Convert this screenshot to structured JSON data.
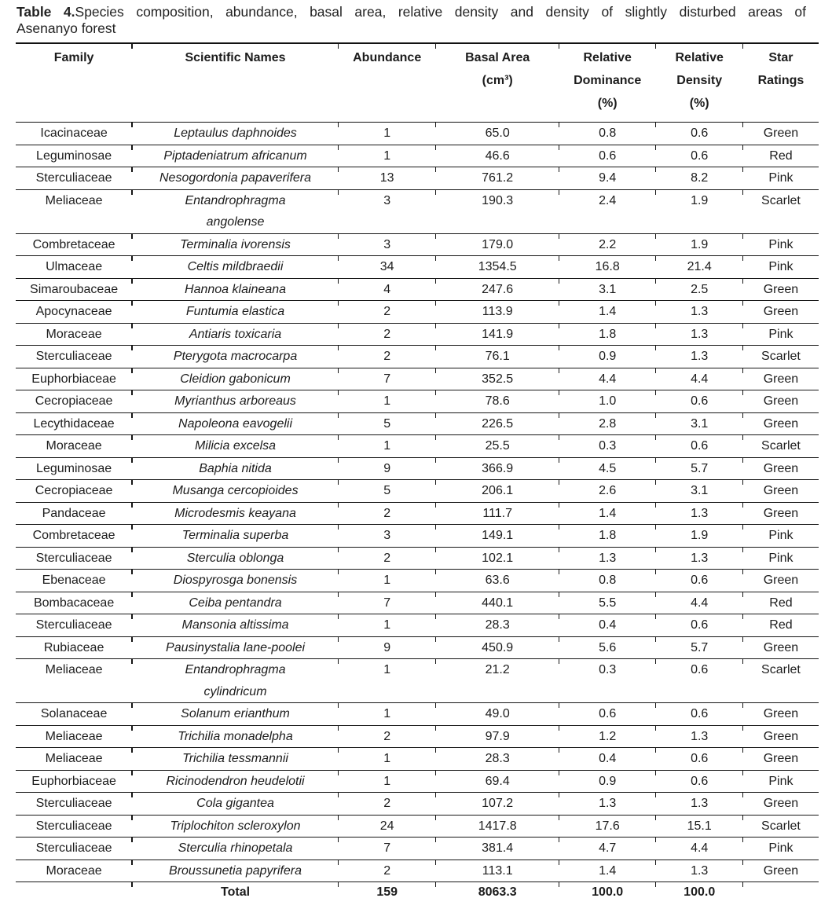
{
  "title": {
    "label": "Table 4.",
    "line1": "Species composition, abundance, basal area, relative density and density of slightly disturbed areas of",
    "line2": "Asenanyo forest"
  },
  "table": {
    "columns": [
      {
        "lines": [
          "Family"
        ]
      },
      {
        "lines": [
          "Scientific Names"
        ]
      },
      {
        "lines": [
          "Abundance"
        ]
      },
      {
        "lines": [
          "Basal Area",
          "(cm³)"
        ]
      },
      {
        "lines": [
          "Relative",
          "Dominance",
          "(%)"
        ]
      },
      {
        "lines": [
          "Relative",
          "Density",
          "(%)"
        ]
      },
      {
        "lines": [
          "Star",
          "Ratings"
        ]
      }
    ],
    "rows": [
      {
        "family": "Icacinaceae",
        "species": "Leptaulus daphnoides",
        "abundance": "1",
        "basal_area": "65.0",
        "relative_dominance": "0.8",
        "relative_density": "0.6",
        "star_rating": "Green"
      },
      {
        "family": "Leguminosae",
        "species": "Piptadeniatrum africanum",
        "abundance": "1",
        "basal_area": "46.6",
        "relative_dominance": "0.6",
        "relative_density": "0.6",
        "star_rating": "Red"
      },
      {
        "family": "Sterculiaceae",
        "species": "Nesogordonia papaverifera",
        "abundance": "13",
        "basal_area": "761.2",
        "relative_dominance": "9.4",
        "relative_density": "8.2",
        "star_rating": "Pink"
      },
      {
        "family": "Meliaceae",
        "species": "Entandrophragma\nangolense",
        "abundance": "3",
        "basal_area": "190.3",
        "relative_dominance": "2.4",
        "relative_density": "1.9",
        "star_rating": "Scarlet"
      },
      {
        "family": "Combretaceae",
        "species": "Terminalia ivorensis",
        "abundance": "3",
        "basal_area": "179.0",
        "relative_dominance": "2.2",
        "relative_density": "1.9",
        "star_rating": "Pink"
      },
      {
        "family": "Ulmaceae",
        "species": "Celtis mildbraedii",
        "abundance": "34",
        "basal_area": "1354.5",
        "relative_dominance": "16.8",
        "relative_density": "21.4",
        "star_rating": "Pink"
      },
      {
        "family": "Simaroubaceae",
        "species": "Hannoa klaineana",
        "abundance": "4",
        "basal_area": "247.6",
        "relative_dominance": "3.1",
        "relative_density": "2.5",
        "star_rating": "Green"
      },
      {
        "family": "Apocynaceae",
        "species": "Funtumia elastica",
        "abundance": "2",
        "basal_area": "113.9",
        "relative_dominance": "1.4",
        "relative_density": "1.3",
        "star_rating": "Green"
      },
      {
        "family": "Moraceae",
        "species": "Antiaris toxicaria",
        "abundance": "2",
        "basal_area": "141.9",
        "relative_dominance": "1.8",
        "relative_density": "1.3",
        "star_rating": "Pink"
      },
      {
        "family": "Sterculiaceae",
        "species": "Pterygota macrocarpa",
        "abundance": "2",
        "basal_area": "76.1",
        "relative_dominance": "0.9",
        "relative_density": "1.3",
        "star_rating": "Scarlet"
      },
      {
        "family": "Euphorbiaceae",
        "species": "Cleidion gabonicum",
        "abundance": "7",
        "basal_area": "352.5",
        "relative_dominance": "4.4",
        "relative_density": "4.4",
        "star_rating": "Green"
      },
      {
        "family": "Cecropiaceae",
        "species": "Myrianthus arboreaus",
        "abundance": "1",
        "basal_area": "78.6",
        "relative_dominance": "1.0",
        "relative_density": "0.6",
        "star_rating": "Green"
      },
      {
        "family": "Lecythidaceae",
        "species": "Napoleona eavogelii",
        "abundance": "5",
        "basal_area": "226.5",
        "relative_dominance": "2.8",
        "relative_density": "3.1",
        "star_rating": "Green"
      },
      {
        "family": "Moraceae",
        "species": "Milicia excelsa",
        "abundance": "1",
        "basal_area": "25.5",
        "relative_dominance": "0.3",
        "relative_density": "0.6",
        "star_rating": "Scarlet"
      },
      {
        "family": "Leguminosae",
        "species": "Baphia nitida",
        "abundance": "9",
        "basal_area": "366.9",
        "relative_dominance": "4.5",
        "relative_density": "5.7",
        "star_rating": "Green"
      },
      {
        "family": "Cecropiaceae",
        "species": "Musanga cercopioides",
        "abundance": "5",
        "basal_area": "206.1",
        "relative_dominance": "2.6",
        "relative_density": "3.1",
        "star_rating": "Green"
      },
      {
        "family": "Pandaceae",
        "species": "Microdesmis keayana",
        "abundance": "2",
        "basal_area": "111.7",
        "relative_dominance": "1.4",
        "relative_density": "1.3",
        "star_rating": "Green"
      },
      {
        "family": "Combretaceae",
        "species": "Terminalia superba",
        "abundance": "3",
        "basal_area": "149.1",
        "relative_dominance": "1.8",
        "relative_density": "1.9",
        "star_rating": "Pink"
      },
      {
        "family": "Sterculiaceae",
        "species": "Sterculia oblonga",
        "abundance": "2",
        "basal_area": "102.1",
        "relative_dominance": "1.3",
        "relative_density": "1.3",
        "star_rating": "Pink"
      },
      {
        "family": "Ebenaceae",
        "species": "Diospyrosga bonensis",
        "abundance": "1",
        "basal_area": "63.6",
        "relative_dominance": "0.8",
        "relative_density": "0.6",
        "star_rating": "Green"
      },
      {
        "family": "Bombacaceae",
        "species": "Ceiba pentandra",
        "abundance": "7",
        "basal_area": "440.1",
        "relative_dominance": "5.5",
        "relative_density": "4.4",
        "star_rating": "Red"
      },
      {
        "family": "Sterculiaceae",
        "species": "Mansonia altissima",
        "abundance": "1",
        "basal_area": "28.3",
        "relative_dominance": "0.4",
        "relative_density": "0.6",
        "star_rating": "Red"
      },
      {
        "family": "Rubiaceae",
        "species": "Pausinystalia lane-poolei",
        "abundance": "9",
        "basal_area": "450.9",
        "relative_dominance": "5.6",
        "relative_density": "5.7",
        "star_rating": "Green"
      },
      {
        "family": "Meliaceae",
        "species": "Entandrophragma\ncylindricum",
        "abundance": "1",
        "basal_area": "21.2",
        "relative_dominance": "0.3",
        "relative_density": "0.6",
        "star_rating": "Scarlet"
      },
      {
        "family": "Solanaceae",
        "species": "Solanum erianthum",
        "abundance": "1",
        "basal_area": "49.0",
        "relative_dominance": "0.6",
        "relative_density": "0.6",
        "star_rating": "Green"
      },
      {
        "family": "Meliaceae",
        "species": "Trichilia monadelpha",
        "abundance": "2",
        "basal_area": "97.9",
        "relative_dominance": "1.2",
        "relative_density": "1.3",
        "star_rating": "Green"
      },
      {
        "family": "Meliaceae",
        "species": "Trichilia tessmannii",
        "abundance": "1",
        "basal_area": "28.3",
        "relative_dominance": "0.4",
        "relative_density": "0.6",
        "star_rating": "Green"
      },
      {
        "family": "Euphorbiaceae",
        "species": "Ricinodendron heudelotii",
        "abundance": "1",
        "basal_area": "69.4",
        "relative_dominance": "0.9",
        "relative_density": "0.6",
        "star_rating": "Pink"
      },
      {
        "family": "Sterculiaceae",
        "species": "Cola gigantea",
        "abundance": "2",
        "basal_area": "107.2",
        "relative_dominance": "1.3",
        "relative_density": "1.3",
        "star_rating": "Green"
      },
      {
        "family": "Sterculiaceae",
        "species": "Triplochiton scleroxylon",
        "abundance": "24",
        "basal_area": "1417.8",
        "relative_dominance": "17.6",
        "relative_density": "15.1",
        "star_rating": "Scarlet"
      },
      {
        "family": "Sterculiaceae",
        "species": "Sterculia rhinopetala",
        "abundance": "7",
        "basal_area": "381.4",
        "relative_dominance": "4.7",
        "relative_density": "4.4",
        "star_rating": "Pink"
      },
      {
        "family": "Moraceae",
        "species": "Broussunetia papyrifera",
        "abundance": "2",
        "basal_area": "113.1",
        "relative_dominance": "1.4",
        "relative_density": "1.3",
        "star_rating": "Green"
      }
    ],
    "total": {
      "family": "",
      "label": "Total",
      "abundance": "159",
      "basal_area": "8063.3",
      "relative_dominance": "100.0",
      "relative_density": "100.0",
      "star_rating": ""
    }
  }
}
